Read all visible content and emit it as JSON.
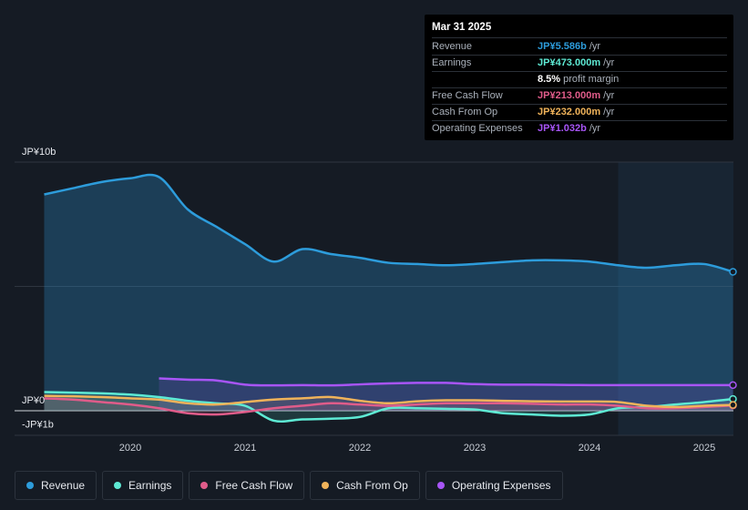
{
  "tooltip": {
    "date": "Mar 31 2025",
    "rows": [
      {
        "label": "Revenue",
        "value": "JP¥5.586b",
        "unit": "/yr",
        "color": "#2d9cdb"
      },
      {
        "label": "Earnings",
        "value": "JP¥473.000m",
        "unit": "/yr",
        "color": "#5eead4"
      },
      {
        "label": "",
        "value": "8.5%",
        "unit": "profit margin",
        "color": "#ffffff"
      },
      {
        "label": "Free Cash Flow",
        "value": "JP¥213.000m",
        "unit": "/yr",
        "color": "#e05c8a"
      },
      {
        "label": "Cash From Op",
        "value": "JP¥232.000m",
        "unit": "/yr",
        "color": "#f0b35a"
      },
      {
        "label": "Operating Expenses",
        "value": "JP¥1.032b",
        "unit": "/yr",
        "color": "#a855f7"
      }
    ]
  },
  "legend": [
    {
      "label": "Revenue",
      "color": "#2d9cdb"
    },
    {
      "label": "Earnings",
      "color": "#5eead4"
    },
    {
      "label": "Free Cash Flow",
      "color": "#e05c8a"
    },
    {
      "label": "Cash From Op",
      "color": "#f0b35a"
    },
    {
      "label": "Operating Expenses",
      "color": "#a855f7"
    }
  ],
  "chart_data": {
    "type": "area",
    "title": "",
    "y_unit": "JP¥ billions",
    "ylim": [
      -1,
      10
    ],
    "y_ticks": [
      {
        "value": 10,
        "label": "JP¥10b"
      },
      {
        "value": 0,
        "label": "JP¥0"
      },
      {
        "value": -1,
        "label": "-JP¥1b"
      }
    ],
    "x_ticks": [
      2020,
      2021,
      2022,
      2023,
      2024,
      2025
    ],
    "xlim": [
      2019.25,
      2025.25
    ],
    "highlight_start": 2024.25,
    "series": [
      {
        "name": "Revenue",
        "color": "#2d9cdb",
        "x": [
          2019.25,
          2019.5,
          2019.75,
          2020.0,
          2020.25,
          2020.5,
          2020.75,
          2021.0,
          2021.25,
          2021.5,
          2021.75,
          2022.0,
          2022.25,
          2022.5,
          2022.75,
          2023.0,
          2023.25,
          2023.5,
          2023.75,
          2024.0,
          2024.25,
          2024.5,
          2024.75,
          2025.0,
          2025.25
        ],
        "values": [
          8.7,
          8.95,
          9.2,
          9.35,
          9.4,
          8.1,
          7.4,
          6.7,
          6.0,
          6.5,
          6.3,
          6.15,
          5.95,
          5.9,
          5.85,
          5.9,
          5.98,
          6.05,
          6.05,
          6.0,
          5.85,
          5.75,
          5.85,
          5.9,
          5.586
        ]
      },
      {
        "name": "Earnings",
        "color": "#5eead4",
        "x": [
          2019.25,
          2019.5,
          2019.75,
          2020.0,
          2020.25,
          2020.5,
          2020.75,
          2021.0,
          2021.25,
          2021.5,
          2021.75,
          2022.0,
          2022.25,
          2022.5,
          2022.75,
          2023.0,
          2023.25,
          2023.5,
          2023.75,
          2024.0,
          2024.25,
          2024.5,
          2024.75,
          2025.0,
          2025.25
        ],
        "values": [
          0.75,
          0.73,
          0.7,
          0.65,
          0.55,
          0.4,
          0.3,
          0.2,
          -0.4,
          -0.35,
          -0.32,
          -0.25,
          0.1,
          0.1,
          0.08,
          0.05,
          -0.1,
          -0.15,
          -0.2,
          -0.15,
          0.1,
          0.15,
          0.25,
          0.35,
          0.473
        ]
      },
      {
        "name": "Free Cash Flow",
        "color": "#e05c8a",
        "x": [
          2019.25,
          2019.5,
          2019.75,
          2020.0,
          2020.25,
          2020.5,
          2020.75,
          2021.0,
          2021.25,
          2021.5,
          2021.75,
          2022.0,
          2022.25,
          2022.5,
          2022.75,
          2023.0,
          2023.25,
          2023.5,
          2023.75,
          2024.0,
          2024.25,
          2024.5,
          2024.75,
          2025.0,
          2025.25
        ],
        "values": [
          0.5,
          0.45,
          0.35,
          0.25,
          0.1,
          -0.1,
          -0.15,
          -0.05,
          0.1,
          0.2,
          0.3,
          0.25,
          0.2,
          0.25,
          0.3,
          0.3,
          0.3,
          0.28,
          0.25,
          0.25,
          0.2,
          0.1,
          0.1,
          0.15,
          0.213
        ]
      },
      {
        "name": "Cash From Op",
        "color": "#f0b35a",
        "x": [
          2019.25,
          2019.5,
          2019.75,
          2020.0,
          2020.25,
          2020.5,
          2020.75,
          2021.0,
          2021.25,
          2021.5,
          2021.75,
          2022.0,
          2022.25,
          2022.5,
          2022.75,
          2023.0,
          2023.25,
          2023.5,
          2023.75,
          2024.0,
          2024.25,
          2024.5,
          2024.75,
          2025.0,
          2025.25
        ],
        "values": [
          0.6,
          0.58,
          0.55,
          0.5,
          0.45,
          0.3,
          0.25,
          0.35,
          0.45,
          0.5,
          0.55,
          0.4,
          0.3,
          0.38,
          0.42,
          0.42,
          0.4,
          0.38,
          0.37,
          0.37,
          0.35,
          0.2,
          0.15,
          0.2,
          0.232
        ]
      },
      {
        "name": "Operating Expenses",
        "color": "#a855f7",
        "x": [
          2020.25,
          2020.5,
          2020.75,
          2021.0,
          2021.25,
          2021.5,
          2021.75,
          2022.0,
          2022.25,
          2022.5,
          2022.75,
          2023.0,
          2023.25,
          2023.5,
          2023.75,
          2024.0,
          2024.25,
          2024.5,
          2024.75,
          2025.0,
          2025.25
        ],
        "values": [
          1.3,
          1.25,
          1.22,
          1.05,
          1.02,
          1.03,
          1.02,
          1.06,
          1.1,
          1.12,
          1.12,
          1.07,
          1.05,
          1.05,
          1.04,
          1.03,
          1.03,
          1.03,
          1.03,
          1.03,
          1.032
        ]
      }
    ]
  }
}
